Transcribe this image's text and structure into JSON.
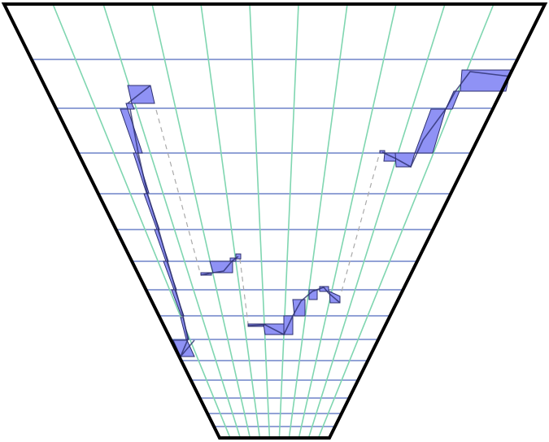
{
  "colors": {
    "frame": "#000000",
    "radial_lines": "#7fd6b0",
    "horizontal_lines": "#6f84c8",
    "shape_fill": "#8f92f5",
    "shape_stroke": "#2c2f6e",
    "connector": "#aaaaaa"
  }
}
